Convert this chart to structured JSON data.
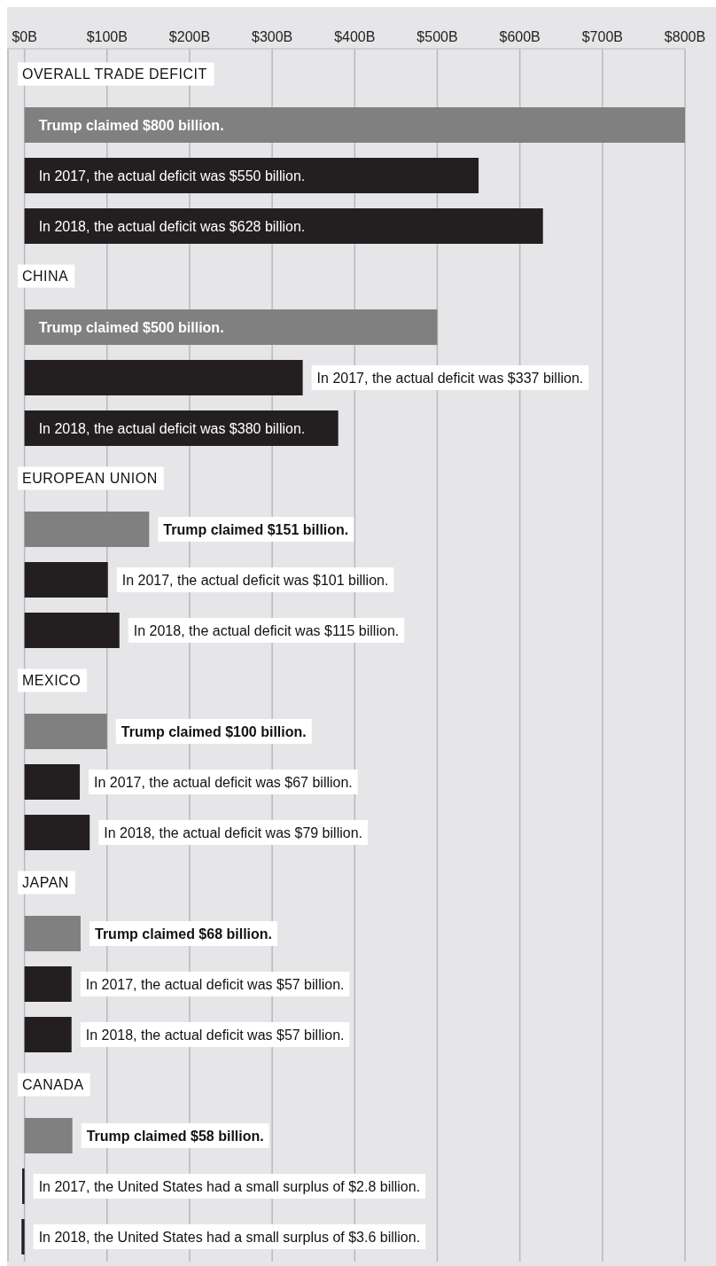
{
  "chart_data": {
    "type": "bar",
    "orientation": "horizontal",
    "categories": [
      "OVERALL TRADE DEFICIT",
      null,
      null,
      null,
      "CHINA",
      null,
      null,
      null,
      "EUROPEAN UNION",
      null,
      null,
      null,
      "MEXICO",
      null,
      null,
      null,
      "JAPAN",
      null,
      null,
      null,
      "CANADA",
      null,
      null,
      null
    ],
    "values": [
      null,
      800,
      550,
      628,
      null,
      500,
      337,
      380,
      null,
      151,
      101,
      115,
      null,
      100,
      67,
      79,
      null,
      68,
      57,
      57,
      null,
      58,
      -2.8,
      -3.6
    ],
    "colors": [
      null,
      "#808080",
      "#231f20",
      "#231f20",
      null,
      "#808080",
      "#231f20",
      "#231f20",
      null,
      "#808080",
      "#231f20",
      "#231f20",
      null,
      "#808080",
      "#231f20",
      "#231f20",
      null,
      "#808080",
      "#231f20",
      "#231f20",
      null,
      "#808080",
      "#231f20",
      "#231f20"
    ],
    "value_labels": [
      null,
      "Trump claimed $800 billion.",
      "In 2017, the actual deficit was $550 billion.",
      "In 2018, the actual deficit was $628 billion.",
      null,
      "Trump claimed $500 billion.",
      "In 2017, the actual deficit was $337 billion.",
      "In 2018, the actual deficit was $380 billion.",
      null,
      "Trump claimed $151 billion.",
      "In 2017, the actual deficit was $101 billion.",
      "In 2018, the actual deficit was $115 billion.",
      null,
      "Trump claimed $100 billion.",
      "In 2017, the actual deficit was $67 billion.",
      "In 2018, the actual deficit was $79 billion.",
      null,
      "Trump claimed $68 billion.",
      "In 2017, the actual deficit was $57 billion.",
      "In 2018, the actual deficit was $57 billion.",
      null,
      "Trump claimed $58 billion.",
      "In 2017, the United States had a small surplus of $2.8 billion.",
      "In 2018, the United States had a small surplus of $3.6 billion."
    ],
    "xlim": [
      -20,
      800
    ],
    "xticks": [
      {
        "value": 0,
        "label": "$0B"
      },
      {
        "value": 100,
        "label": "$100B"
      },
      {
        "value": 200,
        "label": "$200B"
      },
      {
        "value": 300,
        "label": "$300B"
      },
      {
        "value": 400,
        "label": "$400B"
      },
      {
        "value": 500,
        "label": "$500B"
      },
      {
        "value": 600,
        "label": "$600B"
      },
      {
        "value": 700,
        "label": "$700B"
      },
      {
        "value": 800,
        "label": "$800B"
      }
    ],
    "grid": "x"
  }
}
